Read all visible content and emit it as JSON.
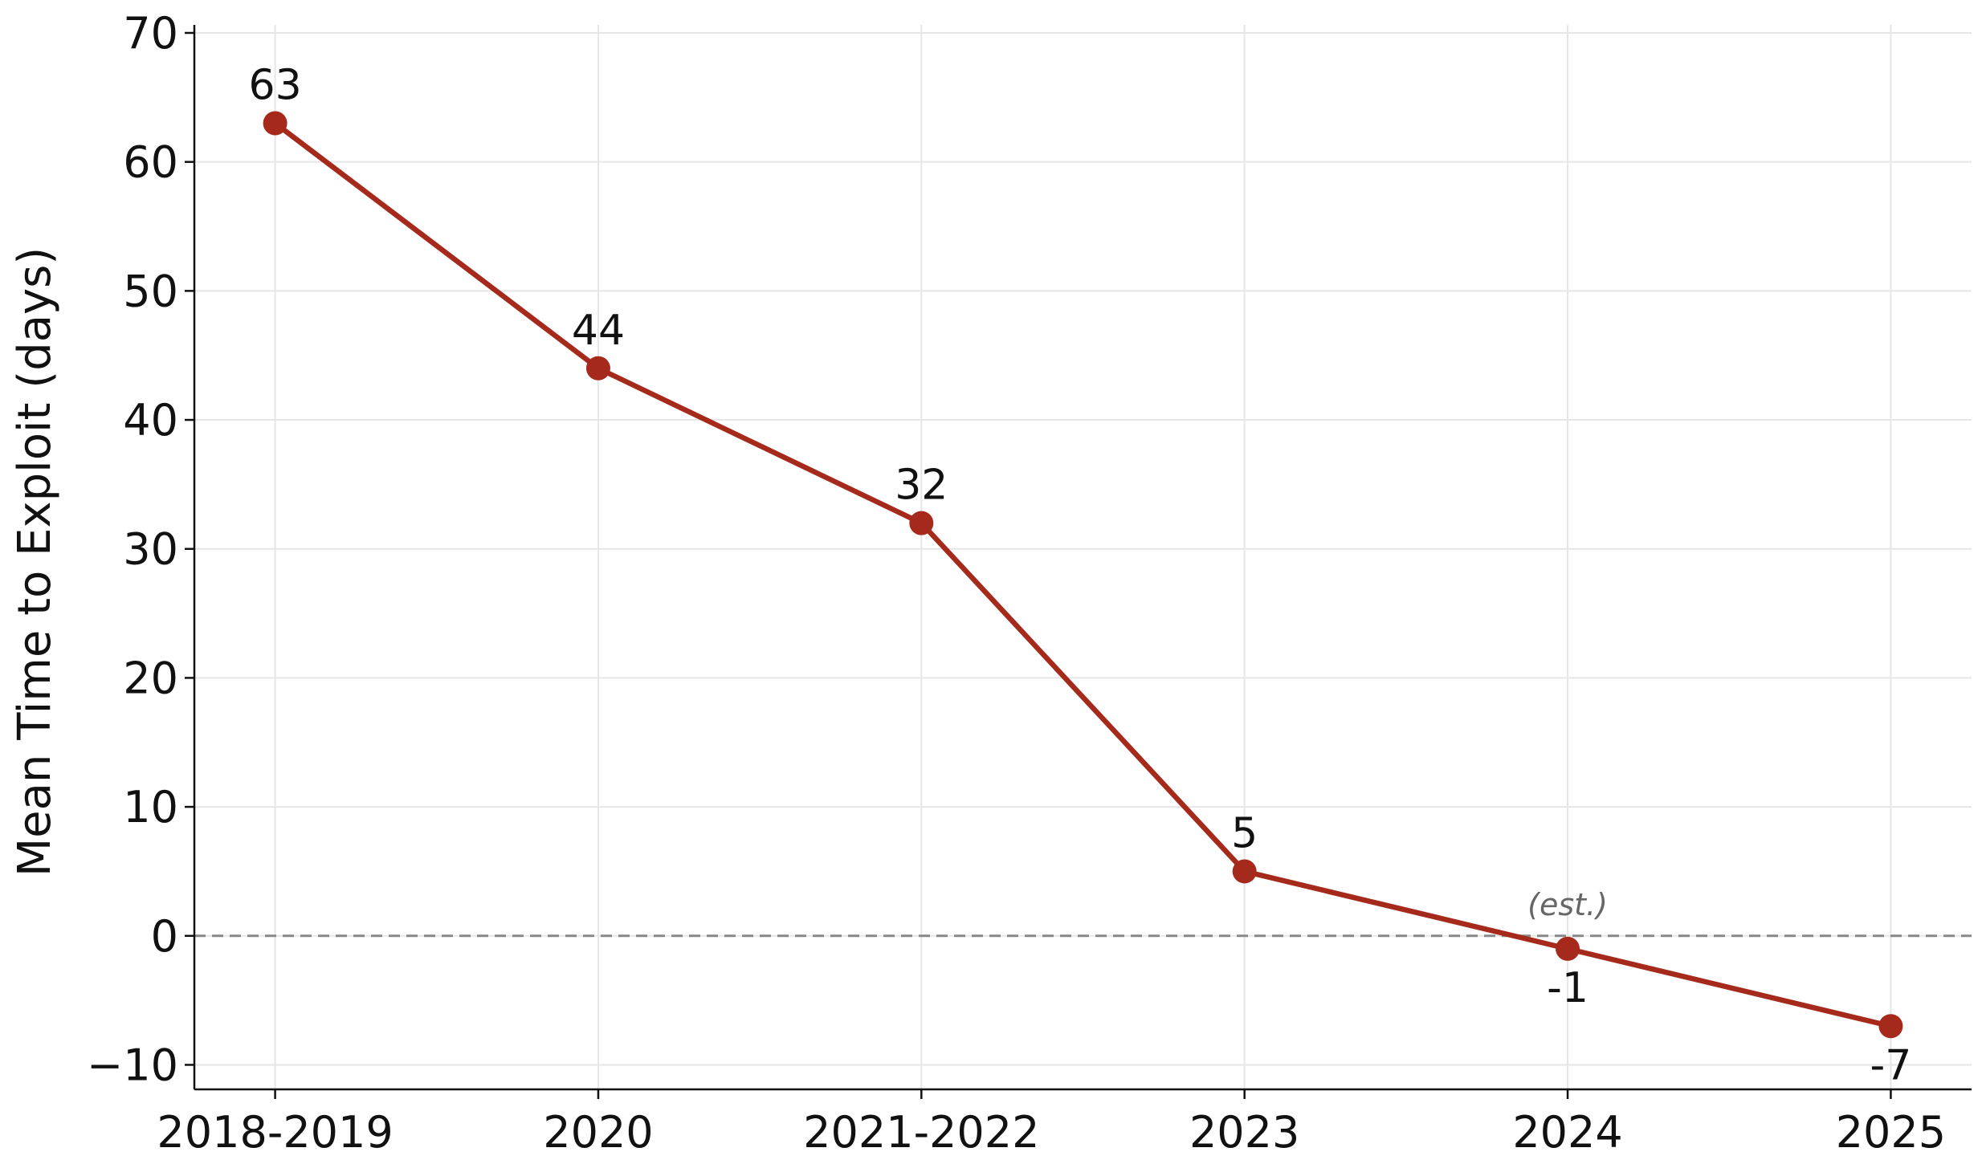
{
  "chart_data": {
    "type": "line",
    "y_label": "Mean Time to Exploit (days)",
    "categories": [
      "2018-2019",
      "2020",
      "2021-2022",
      "2023",
      "2024",
      "2025"
    ],
    "series": [
      {
        "name": "Mean Time to Exploit",
        "color": "#a52a1c",
        "values": [
          63,
          44,
          32,
          5,
          -1,
          -7
        ]
      }
    ],
    "annotation": "(est.)",
    "reference_line": 0,
    "ylim": [
      -11.9,
      70
    ],
    "yticks": [
      {
        "value": -10,
        "label": "−10"
      },
      0,
      10,
      20,
      30,
      40,
      50,
      60,
      70
    ],
    "grid": true
  }
}
